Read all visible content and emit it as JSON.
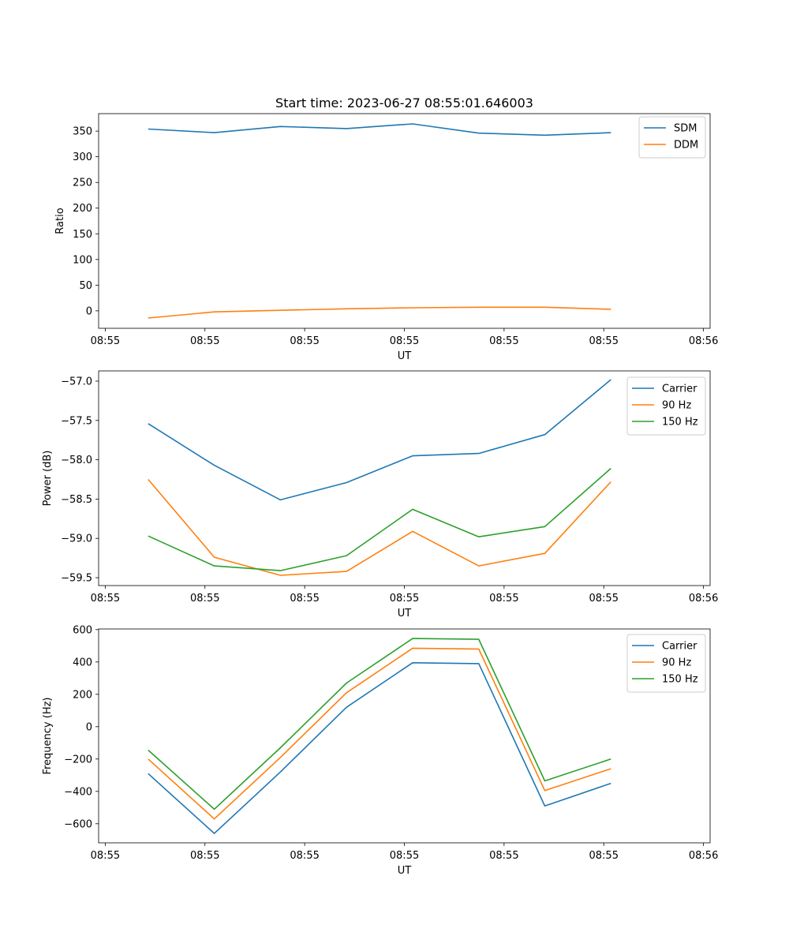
{
  "figure": {
    "title": "Start time: 2023-06-27 08:55:01.646003"
  },
  "chart_data": [
    {
      "type": "line",
      "title": "Start time: 2023-06-27 08:55:01.646003",
      "xlabel": "UT",
      "ylabel": "Ratio",
      "x_tick_labels": [
        "08:55",
        "08:55",
        "08:55",
        "08:55",
        "08:55",
        "08:55",
        "08:56"
      ],
      "xlim": [
        -0.75,
        8.5
      ],
      "y_ticks": [
        0,
        50,
        100,
        150,
        200,
        250,
        300,
        350
      ],
      "ylim": [
        -34,
        384
      ],
      "legend_position": "upper right",
      "series": [
        {
          "name": "SDM",
          "color": "#1f77b4",
          "x": [
            0,
            1,
            2,
            3,
            4,
            5,
            6,
            7
          ],
          "values": [
            354,
            347,
            359,
            355,
            364,
            346,
            342,
            347
          ]
        },
        {
          "name": "DDM",
          "color": "#ff7f0e",
          "x": [
            0,
            1,
            2,
            3,
            4,
            5,
            6,
            7
          ],
          "values": [
            -14,
            -2,
            1,
            4,
            6,
            7,
            7,
            3
          ]
        }
      ]
    },
    {
      "type": "line",
      "xlabel": "UT",
      "ylabel": "Power (dB)",
      "x_tick_labels": [
        "08:55",
        "08:55",
        "08:55",
        "08:55",
        "08:55",
        "08:55",
        "08:56"
      ],
      "xlim": [
        -0.75,
        8.5
      ],
      "y_ticks": [
        -59.5,
        -59.0,
        -58.5,
        -58.0,
        -57.5,
        -57.0
      ],
      "y_tick_labels": [
        "−59.5",
        "−59.0",
        "−58.5",
        "−58.0",
        "−57.5",
        "−57.0"
      ],
      "ylim": [
        -59.6,
        -56.87
      ],
      "legend_position": "upper right",
      "series": [
        {
          "name": "Carrier",
          "color": "#1f77b4",
          "x": [
            0,
            1,
            2,
            3,
            4,
            5,
            6,
            7
          ],
          "values": [
            -57.54,
            -58.07,
            -58.51,
            -58.29,
            -57.95,
            -57.92,
            -57.68,
            -56.98
          ]
        },
        {
          "name": "90 Hz",
          "color": "#ff7f0e",
          "x": [
            0,
            1,
            2,
            3,
            4,
            5,
            6,
            7
          ],
          "values": [
            -58.25,
            -59.24,
            -59.47,
            -59.42,
            -58.91,
            -59.35,
            -59.19,
            -58.28
          ]
        },
        {
          "name": "150 Hz",
          "color": "#2ca02c",
          "x": [
            0,
            1,
            2,
            3,
            4,
            5,
            6,
            7
          ],
          "values": [
            -58.97,
            -59.35,
            -59.41,
            -59.22,
            -58.63,
            -58.98,
            -58.85,
            -58.11
          ]
        }
      ]
    },
    {
      "type": "line",
      "xlabel": "UT",
      "ylabel": "Frequency (Hz)",
      "x_tick_labels": [
        "08:55",
        "08:55",
        "08:55",
        "08:55",
        "08:55",
        "08:55",
        "08:56"
      ],
      "xlim": [
        -0.75,
        8.5
      ],
      "y_ticks": [
        -600,
        -400,
        -200,
        0,
        200,
        400,
        600
      ],
      "y_tick_labels": [
        "−600",
        "−400",
        "−200",
        "0",
        "200",
        "400",
        "600"
      ],
      "ylim": [
        -718,
        604
      ],
      "legend_position": "upper right",
      "series": [
        {
          "name": "Carrier",
          "color": "#1f77b4",
          "x": [
            0,
            1,
            2,
            3,
            4,
            5,
            6,
            7
          ],
          "values": [
            -290,
            -660,
            -280,
            120,
            395,
            390,
            -490,
            -350
          ]
        },
        {
          "name": "90 Hz",
          "color": "#ff7f0e",
          "x": [
            0,
            1,
            2,
            3,
            4,
            5,
            6,
            7
          ],
          "values": [
            -200,
            -570,
            -190,
            210,
            485,
            480,
            -395,
            -260
          ]
        },
        {
          "name": "150 Hz",
          "color": "#2ca02c",
          "x": [
            0,
            1,
            2,
            3,
            4,
            5,
            6,
            7
          ],
          "values": [
            -145,
            -510,
            -130,
            270,
            545,
            540,
            -335,
            -200
          ]
        }
      ]
    }
  ]
}
